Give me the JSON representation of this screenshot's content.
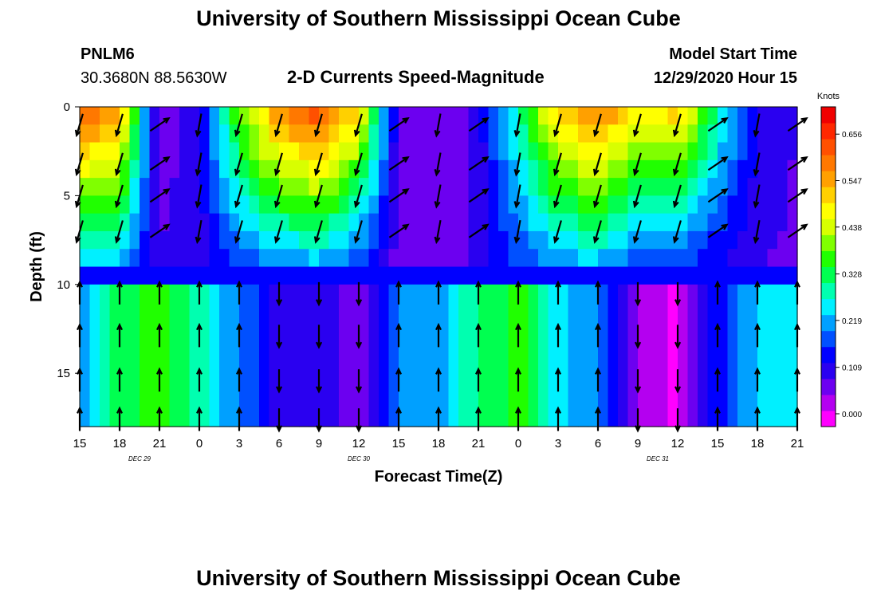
{
  "page": {
    "title_top": "University of Southern Mississippi Ocean Cube",
    "title_bottom": "University of Southern Mississippi Ocean Cube",
    "station_id": "PNLM6",
    "station_coords": "30.3680N 88.5630W",
    "chart_title": "2-D Currents Speed-Magnitude",
    "model_start_label": "Model Start Time",
    "model_start_value": "12/29/2020 Hour 15"
  },
  "colors": {
    "ramp": [
      "#ff00ff",
      "#b400f0",
      "#6c00f0",
      "#2a00f0",
      "#0000ff",
      "#0050ff",
      "#00a0ff",
      "#00f0ff",
      "#00ffb0",
      "#00ff50",
      "#20ff00",
      "#80ff00",
      "#d8ff00",
      "#ffff00",
      "#ffd000",
      "#ffa000",
      "#ff7800",
      "#ff5000",
      "#ff2800",
      "#f00000"
    ]
  },
  "chart_data": {
    "type": "heatmap",
    "title": "2-D Currents Speed-Magnitude",
    "xlabel": "Forecast Time(Z)",
    "ylabel": "Depth (ft)",
    "x_tick_labels": [
      "15",
      "18",
      "21",
      "0",
      "3",
      "6",
      "9",
      "12",
      "15",
      "18",
      "21",
      "0",
      "3",
      "6",
      "9",
      "12",
      "15",
      "18",
      "21"
    ],
    "x_hours": [
      0,
      3,
      6,
      9,
      12,
      15,
      18,
      21,
      24,
      27,
      30,
      33,
      36,
      39,
      42,
      45,
      48,
      51,
      54
    ],
    "x_range_hours": [
      0,
      54
    ],
    "day_labels": [
      {
        "text": "DEC  29",
        "hour": 4.5
      },
      {
        "text": "DEC  30",
        "hour": 21
      },
      {
        "text": "DEC  31",
        "hour": 43.5
      }
    ],
    "y_ticks": [
      0,
      5,
      10,
      15
    ],
    "y_range_ft": [
      0,
      18
    ],
    "colorbar": {
      "unit": "Knots",
      "tick_labels": [
        "0.656",
        "0.547",
        "0.438",
        "0.328",
        "0.219",
        "0.109",
        "0.000"
      ],
      "tick_values": [
        0.656,
        0.547,
        0.438,
        0.328,
        0.219,
        0.109,
        0.0
      ],
      "range": [
        -0.03,
        0.72
      ]
    },
    "depth_profile_ft": [
      0.5,
      1.5,
      2.5,
      3.5,
      4.5,
      5.5,
      6.5,
      7.5,
      8.5,
      9.5,
      10.5,
      11.5,
      12.5,
      13.5,
      14.5,
      15.5,
      16.5,
      17.5
    ],
    "surface_speed_knots": [
      {
        "hour": 0,
        "value": 0.62
      },
      {
        "hour": 3,
        "value": 0.55
      },
      {
        "hour": 6,
        "value": 0.05
      },
      {
        "hour": 9,
        "value": 0.12
      },
      {
        "hour": 12,
        "value": 0.4
      },
      {
        "hour": 15,
        "value": 0.58
      },
      {
        "hour": 18,
        "value": 0.64
      },
      {
        "hour": 21,
        "value": 0.5
      },
      {
        "hour": 24,
        "value": 0.08
      },
      {
        "hour": 27,
        "value": 0.04
      },
      {
        "hour": 30,
        "value": 0.1
      },
      {
        "hour": 33,
        "value": 0.3
      },
      {
        "hour": 36,
        "value": 0.52
      },
      {
        "hour": 39,
        "value": 0.6
      },
      {
        "hour": 42,
        "value": 0.48
      },
      {
        "hour": 45,
        "value": 0.52
      },
      {
        "hour": 48,
        "value": 0.3
      },
      {
        "hour": 51,
        "value": 0.12
      },
      {
        "hour": 54,
        "value": 0.08
      }
    ],
    "mid_speed_knots": [
      {
        "hour": 0,
        "value": 0.2
      },
      {
        "hour": 3,
        "value": 0.33
      },
      {
        "hour": 6,
        "value": 0.36
      },
      {
        "hour": 9,
        "value": 0.28
      },
      {
        "hour": 12,
        "value": 0.2
      },
      {
        "hour": 15,
        "value": 0.1
      },
      {
        "hour": 18,
        "value": 0.1
      },
      {
        "hour": 21,
        "value": 0.06
      },
      {
        "hour": 24,
        "value": 0.2
      },
      {
        "hour": 27,
        "value": 0.22
      },
      {
        "hour": 30,
        "value": 0.3
      },
      {
        "hour": 33,
        "value": 0.36
      },
      {
        "hour": 36,
        "value": 0.25
      },
      {
        "hour": 39,
        "value": 0.2
      },
      {
        "hour": 42,
        "value": 0.04
      },
      {
        "hour": 45,
        "value": 0.0
      },
      {
        "hour": 48,
        "value": 0.14
      },
      {
        "hour": 51,
        "value": 0.24
      },
      {
        "hour": 54,
        "value": 0.26
      }
    ],
    "vectors_note": "arrows show current direction at each time/depth"
  }
}
